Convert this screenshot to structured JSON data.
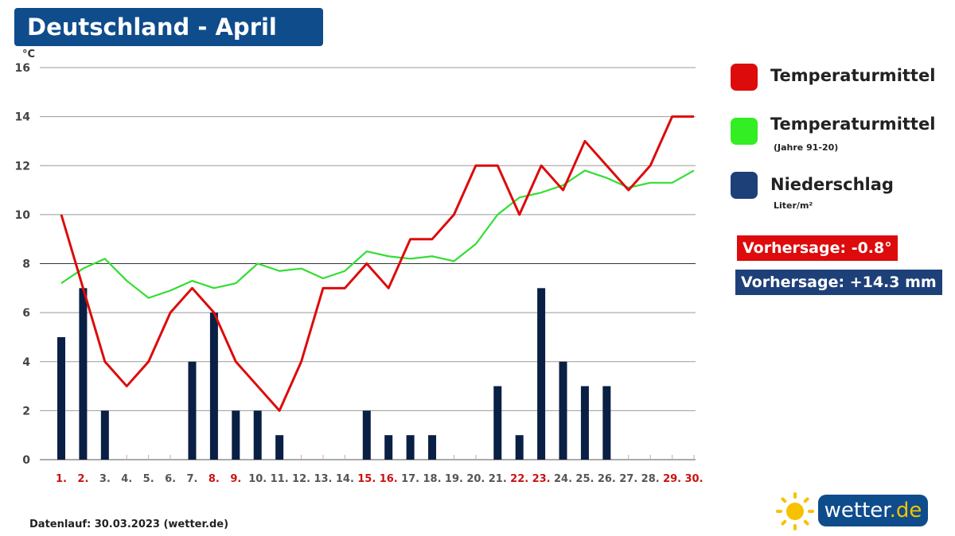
{
  "title": "Deutschland - April",
  "y_unit": "°C",
  "chart_data": {
    "type": "bar+line",
    "categories": [
      "1.",
      "2.",
      "3.",
      "4.",
      "5.",
      "6.",
      "7.",
      "8.",
      "9.",
      "10.",
      "11.",
      "12.",
      "13.",
      "14.",
      "15.",
      "16.",
      "17.",
      "18.",
      "19.",
      "20.",
      "21.",
      "22.",
      "23.",
      "24.",
      "25.",
      "26.",
      "27.",
      "28.",
      "29.",
      "30."
    ],
    "highlight_categories": [
      "1.",
      "2.",
      "8.",
      "9.",
      "15.",
      "16.",
      "22.",
      "23.",
      "29.",
      "30."
    ],
    "ylim": [
      0,
      16
    ],
    "yticks": [
      0,
      2,
      4,
      6,
      8,
      10,
      12,
      14,
      16
    ],
    "grid": true,
    "series": [
      {
        "name": "Temperaturmittel",
        "type": "line",
        "color": "#dd0b0b",
        "values": [
          10,
          7,
          4,
          3,
          4,
          6,
          7,
          6,
          4,
          3,
          2,
          4,
          7,
          7,
          8,
          7,
          9,
          9,
          10,
          12,
          12,
          10,
          12,
          11,
          13,
          12,
          11,
          12,
          14,
          14
        ]
      },
      {
        "name": "Temperaturmittel",
        "type": "line",
        "color": "#33dd33",
        "values": [
          7.2,
          7.8,
          8.2,
          7.3,
          6.6,
          6.9,
          7.3,
          7.0,
          7.2,
          8.0,
          7.7,
          7.8,
          7.4,
          7.7,
          8.5,
          8.3,
          8.2,
          8.3,
          8.1,
          8.8,
          10.0,
          10.7,
          10.9,
          11.2,
          11.8,
          11.5,
          11.1,
          11.3,
          11.3,
          11.8
        ]
      },
      {
        "name": "Niederschlag",
        "type": "bar",
        "color": "#0a1f44",
        "values": [
          5,
          7,
          2,
          0,
          0,
          0,
          4,
          6,
          2,
          2,
          1,
          0,
          0,
          0,
          2,
          1,
          1,
          1,
          0,
          0,
          3,
          1,
          7,
          4,
          3,
          3,
          0,
          0,
          0,
          0
        ]
      }
    ]
  },
  "legend": [
    {
      "label": "Temperaturmittel",
      "sub": "",
      "color": "#dd0b0b"
    },
    {
      "label": "Temperaturmittel",
      "sub": "(Jahre 91-20)",
      "color": "#33ee22"
    },
    {
      "label": "Niederschlag",
      "sub": "Liter/m²",
      "color": "#1e4079"
    }
  ],
  "badges": {
    "temp": {
      "text": "Vorhersage: -0.8°",
      "color": "#dd0b0b"
    },
    "rain": {
      "text": "Vorhersage: +14.3 mm",
      "color": "#1e4079"
    }
  },
  "footer": "Datenlauf: 30.03.2023 (wetter.de)",
  "logo": {
    "text": "wetter",
    "suffix": ".de",
    "icon": "sun-icon"
  }
}
